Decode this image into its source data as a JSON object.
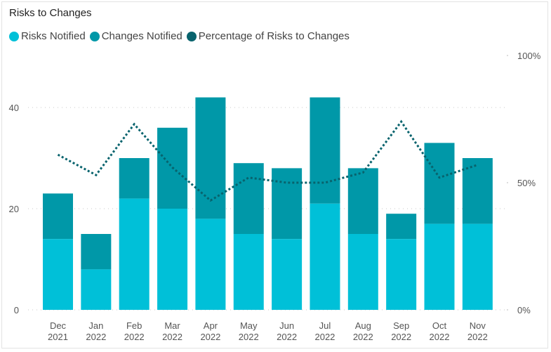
{
  "chart_data": {
    "type": "bar",
    "title": "Risks to Changes",
    "categories": [
      [
        "Dec",
        "2021"
      ],
      [
        "Jan",
        "2022"
      ],
      [
        "Feb",
        "2022"
      ],
      [
        "Mar",
        "2022"
      ],
      [
        "Apr",
        "2022"
      ],
      [
        "May",
        "2022"
      ],
      [
        "Jun",
        "2022"
      ],
      [
        "Jul",
        "2022"
      ],
      [
        "Aug",
        "2022"
      ],
      [
        "Sep",
        "2022"
      ],
      [
        "Oct",
        "2022"
      ],
      [
        "Nov",
        "2022"
      ]
    ],
    "series": [
      {
        "name": "Risks Notified",
        "color": "#00c0d8",
        "values": [
          14,
          8,
          22,
          20,
          18,
          15,
          14,
          21,
          15,
          14,
          17,
          17
        ]
      },
      {
        "name": "Changes Notified",
        "color": "#0098a8",
        "values": [
          23,
          15,
          30,
          36,
          42,
          29,
          28,
          42,
          28,
          19,
          33,
          30
        ]
      },
      {
        "name": "Percentage of Risks to Changes",
        "color": "#08636d",
        "values": [
          61,
          53,
          73,
          56,
          43,
          52,
          50,
          50,
          54,
          74,
          52,
          57
        ]
      }
    ],
    "stacking": "Risks Notified at base; Changes Notified bar shown on top up to its total",
    "y_left": {
      "min": 0,
      "max": 50,
      "ticks": [
        "0",
        "20",
        "40"
      ],
      "tick_values": [
        0,
        20,
        40
      ]
    },
    "y_right": {
      "min": 0,
      "max": 100,
      "ticks": [
        "0%",
        "50%",
        "100%"
      ],
      "tick_values": [
        0,
        50,
        100
      ]
    },
    "legend_position": "top-left",
    "grid": true
  }
}
